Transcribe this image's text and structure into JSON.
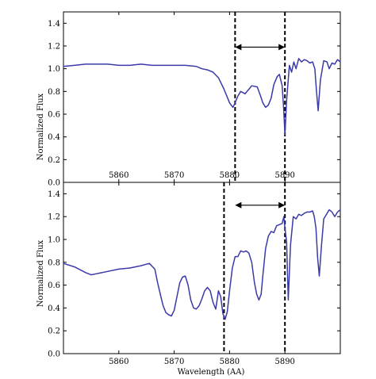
{
  "chart_data": [
    {
      "type": "line",
      "panel": "top",
      "ylabel": "Normalized Flux",
      "xlabel": "",
      "xlim": [
        5850,
        5900
      ],
      "ylim": [
        0.0,
        1.5
      ],
      "yticks": [
        "0.0",
        "0.2",
        "0.4",
        "0.6",
        "0.8",
        "1.0",
        "1.2",
        "1.4"
      ],
      "xticks": [
        "5860",
        "5870",
        "5880",
        "5890"
      ],
      "grid": false,
      "line_color": "#3a3aa8",
      "series": [
        {
          "x": [
            5850,
            5852,
            5854,
            5856,
            5858,
            5860,
            5862,
            5864,
            5866,
            5868,
            5870,
            5872,
            5874,
            5875,
            5876,
            5877,
            5878,
            5879,
            5880,
            5880.6,
            5881,
            5881.5,
            5882,
            5882.8,
            5883.5,
            5884,
            5885,
            5885.6,
            5886,
            5886.5,
            5887,
            5887.5,
            5888,
            5888.6,
            5889,
            5889.5,
            5889.75,
            5890,
            5890.3,
            5890.8,
            5891.2,
            5891.6,
            5892,
            5892.5,
            5893,
            5893.5,
            5894,
            5894.5,
            5895,
            5895.4,
            5895.7,
            5896,
            5896.4,
            5897,
            5897.6,
            5898,
            5898.5,
            5899,
            5899.5,
            5900
          ],
          "y": [
            1.02,
            1.03,
            1.04,
            1.04,
            1.04,
            1.03,
            1.03,
            1.04,
            1.03,
            1.03,
            1.03,
            1.03,
            1.02,
            1.0,
            0.99,
            0.97,
            0.92,
            0.82,
            0.7,
            0.66,
            0.7,
            0.76,
            0.8,
            0.78,
            0.82,
            0.85,
            0.84,
            0.76,
            0.7,
            0.66,
            0.68,
            0.74,
            0.86,
            0.93,
            0.95,
            0.85,
            0.66,
            0.42,
            0.72,
            1.03,
            0.97,
            1.06,
            1.0,
            1.09,
            1.06,
            1.08,
            1.07,
            1.05,
            1.06,
            1.0,
            0.8,
            0.63,
            0.9,
            1.07,
            1.06,
            1.0,
            1.05,
            1.04,
            1.08,
            1.06
          ]
        }
      ],
      "vlines": [
        5881,
        5890
      ],
      "arrow": {
        "from": 5881,
        "to": 5890,
        "y": 1.19
      }
    },
    {
      "type": "line",
      "panel": "bottom",
      "ylabel": "Normalized Flux",
      "xlabel": "Wavelength (AA)",
      "xlim": [
        5850,
        5900
      ],
      "ylim": [
        0.0,
        1.5
      ],
      "yticks": [
        "0.0",
        "0.2",
        "0.4",
        "0.6",
        "0.8",
        "1.0",
        "1.2",
        "1.4"
      ],
      "xticks": [
        "5860",
        "5870",
        "5880",
        "5890"
      ],
      "grid": false,
      "line_color": "#3a3aa8",
      "series": [
        {
          "x": [
            5850,
            5852,
            5854,
            5855,
            5856,
            5858,
            5860,
            5862,
            5864,
            5865.5,
            5866.5,
            5867,
            5867.5,
            5868,
            5868.5,
            5869,
            5869.5,
            5870,
            5870.5,
            5871,
            5871.5,
            5872,
            5872.5,
            5873,
            5873.5,
            5874,
            5874.5,
            5875,
            5875.5,
            5876,
            5876.5,
            5877,
            5877.5,
            5878,
            5878.4,
            5878.8,
            5879.2,
            5879.6,
            5880,
            5880.5,
            5881,
            5881.5,
            5882,
            5882.5,
            5883,
            5883.5,
            5884,
            5884.5,
            5884.9,
            5885.3,
            5885.7,
            5886,
            5886.5,
            5887,
            5887.5,
            5888,
            5888.5,
            5889,
            5889.5,
            5889.8,
            5890,
            5890.3,
            5890.6,
            5891,
            5891.5,
            5892,
            5892.5,
            5893,
            5893.5,
            5894,
            5894.5,
            5895,
            5895.3,
            5895.6,
            5895.9,
            5896.2,
            5896.6,
            5897,
            5897.5,
            5898,
            5898.5,
            5899,
            5899.5,
            5900
          ],
          "y": [
            0.79,
            0.76,
            0.71,
            0.69,
            0.7,
            0.72,
            0.74,
            0.75,
            0.77,
            0.79,
            0.74,
            0.62,
            0.52,
            0.42,
            0.36,
            0.34,
            0.33,
            0.38,
            0.5,
            0.62,
            0.67,
            0.68,
            0.6,
            0.47,
            0.4,
            0.39,
            0.42,
            0.48,
            0.55,
            0.58,
            0.55,
            0.45,
            0.39,
            0.55,
            0.5,
            0.35,
            0.3,
            0.37,
            0.55,
            0.75,
            0.85,
            0.85,
            0.9,
            0.89,
            0.9,
            0.88,
            0.8,
            0.62,
            0.52,
            0.47,
            0.52,
            0.68,
            0.92,
            1.03,
            1.07,
            1.06,
            1.12,
            1.13,
            1.14,
            1.2,
            1.1,
            0.98,
            0.47,
            0.95,
            1.2,
            1.18,
            1.22,
            1.21,
            1.23,
            1.24,
            1.24,
            1.25,
            1.2,
            1.1,
            0.84,
            0.68,
            0.95,
            1.18,
            1.22,
            1.26,
            1.24,
            1.2,
            1.24,
            1.26
          ]
        }
      ],
      "vlines": [
        5879,
        5890
      ],
      "arrow": {
        "from": 5881,
        "to": 5890,
        "y": 1.3
      }
    }
  ]
}
